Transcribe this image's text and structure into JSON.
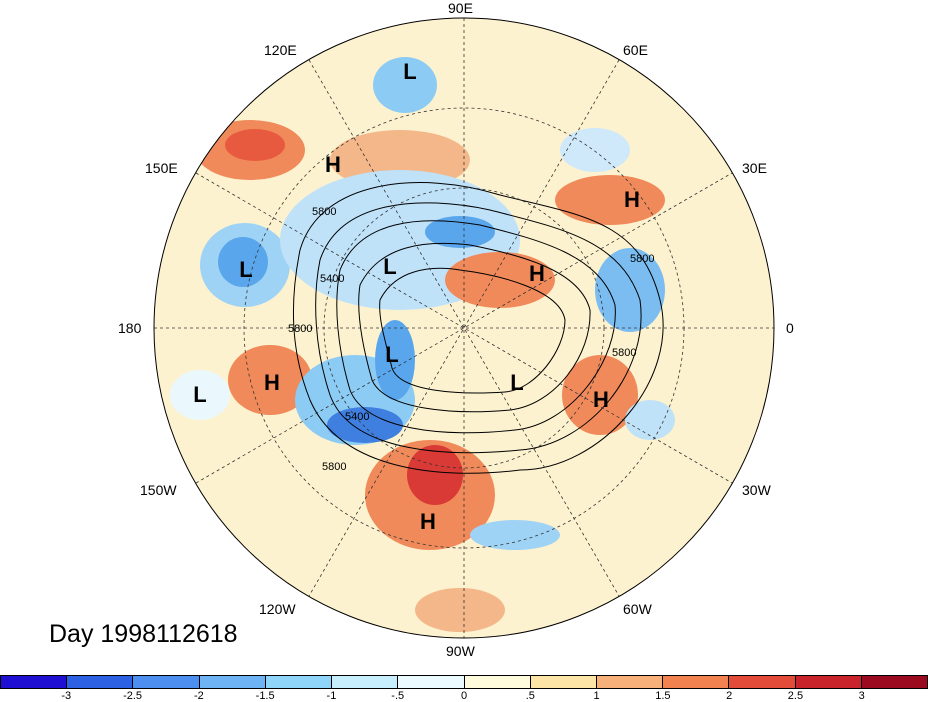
{
  "title": "Day 1998112618",
  "longitude_labels": {
    "e90": "90E",
    "e60": "60E",
    "e30": "30E",
    "zero": "0",
    "w30": "30W",
    "w60": "60W",
    "w90": "90W",
    "w120": "120W",
    "w150": "150W",
    "d180": "180",
    "e150": "150E",
    "e120": "120E"
  },
  "contour_labels": [
    "5800",
    "5400",
    "5800",
    "5400",
    "5800",
    "5800",
    "5800"
  ],
  "systems": [
    {
      "type": "L"
    },
    {
      "type": "H"
    },
    {
      "type": "H"
    },
    {
      "type": "L"
    },
    {
      "type": "L"
    },
    {
      "type": "H"
    },
    {
      "type": "L"
    },
    {
      "type": "H"
    },
    {
      "type": "L"
    },
    {
      "type": "L"
    },
    {
      "type": "H"
    },
    {
      "type": "H"
    }
  ],
  "colorbar": {
    "colors": [
      "#1f0fd2",
      "#2d61e3",
      "#4d8ff0",
      "#6eb4f5",
      "#8fd5fa",
      "#c7eefc",
      "#eafafe",
      "#fefbdc",
      "#fce3a6",
      "#f8b07a",
      "#f2824f",
      "#e44c3a",
      "#c9232b",
      "#9b0a1f"
    ],
    "ticks": [
      "-3",
      "-2.5",
      "-2",
      "-1.5",
      "-1",
      "-.5",
      "0",
      ".5",
      "1",
      "1.5",
      "2",
      "2.5",
      "3"
    ]
  }
}
